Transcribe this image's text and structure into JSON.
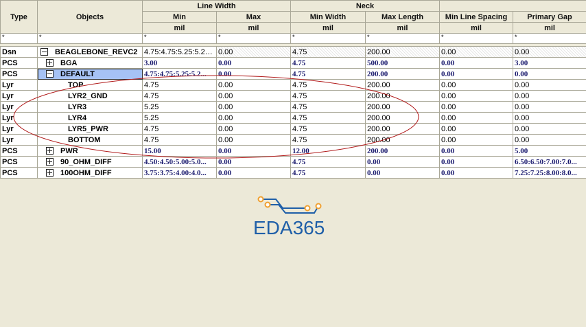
{
  "headers": {
    "type": "Type",
    "objects": "Objects",
    "line_width": "Line Width",
    "neck": "Neck",
    "min": "Min",
    "max": "Max",
    "min_width": "Min Width",
    "max_length": "Max Length",
    "min_line_spacing": "Min Line Spacing",
    "primary_gap": "Primary Gap",
    "unit": "mil",
    "filter": "*"
  },
  "rows": [
    {
      "type": "Dsn",
      "name": "BEAGLEBONE_REVC2",
      "level": 0,
      "expander": "minus",
      "bold": false,
      "values": [
        "4.75:4.75:5.25:5.25...",
        "0.00",
        "4.75",
        "200.00",
        "0.00",
        "0.00"
      ]
    },
    {
      "type": "PCS",
      "name": "BGA",
      "level": 1,
      "expander": "plus",
      "bold": true,
      "values": [
        "3.00",
        "0.00",
        "4.75",
        "500.00",
        "0.00",
        "3.00"
      ]
    },
    {
      "type": "PCS",
      "name": "DEFAULT",
      "level": 1,
      "expander": "minus",
      "bold": true,
      "selected": true,
      "values": [
        "4.75:4.75:5.25:5.2...",
        "0.00",
        "4.75",
        "200.00",
        "0.00",
        "0.00"
      ]
    },
    {
      "type": "Lyr",
      "name": "TOP",
      "level": 2,
      "bold": false,
      "values": [
        "4.75",
        "0.00",
        "4.75",
        "200.00",
        "0.00",
        "0.00"
      ]
    },
    {
      "type": "Lyr",
      "name": "LYR2_GND",
      "level": 2,
      "bold": false,
      "values": [
        "4.75",
        "0.00",
        "4.75",
        "200.00",
        "0.00",
        "0.00"
      ]
    },
    {
      "type": "Lyr",
      "name": "LYR3",
      "level": 2,
      "bold": false,
      "values": [
        "5.25",
        "0.00",
        "4.75",
        "200.00",
        "0.00",
        "0.00"
      ]
    },
    {
      "type": "Lyr",
      "name": "LYR4",
      "level": 2,
      "bold": false,
      "values": [
        "5.25",
        "0.00",
        "4.75",
        "200.00",
        "0.00",
        "0.00"
      ]
    },
    {
      "type": "Lyr",
      "name": "LYR5_PWR",
      "level": 2,
      "bold": false,
      "values": [
        "4.75",
        "0.00",
        "4.75",
        "200.00",
        "0.00",
        "0.00"
      ]
    },
    {
      "type": "Lyr",
      "name": "BOTTOM",
      "level": 2,
      "bold": false,
      "values": [
        "4.75",
        "0.00",
        "4.75",
        "200.00",
        "0.00",
        "0.00"
      ]
    },
    {
      "type": "PCS",
      "name": "PWR",
      "level": 1,
      "expander": "plus",
      "bold": true,
      "values": [
        "15.00",
        "0.00",
        "12.00",
        "200.00",
        "0.00",
        "5.00"
      ]
    },
    {
      "type": "PCS",
      "name": "90_OHM_DIFF",
      "level": 1,
      "expander": "plus",
      "bold": true,
      "values": [
        "4.50:4.50:5.00:5.0...",
        "0.00",
        "4.75",
        "0.00",
        "0.00",
        "6.50:6.50:7.00:7.0..."
      ]
    },
    {
      "type": "PCS",
      "name": "100OHM_DIFF",
      "level": 1,
      "expander": "plus",
      "bold": true,
      "values": [
        "3.75:3.75:4.00:4.0...",
        "0.00",
        "4.75",
        "0.00",
        "0.00",
        "7.25:7.25:8.00:8.0..."
      ]
    }
  ],
  "watermark": {
    "text": "EDA365",
    "color": "#1f5fa8",
    "accent": "#f0a030"
  },
  "annotation_color": "#b01818"
}
